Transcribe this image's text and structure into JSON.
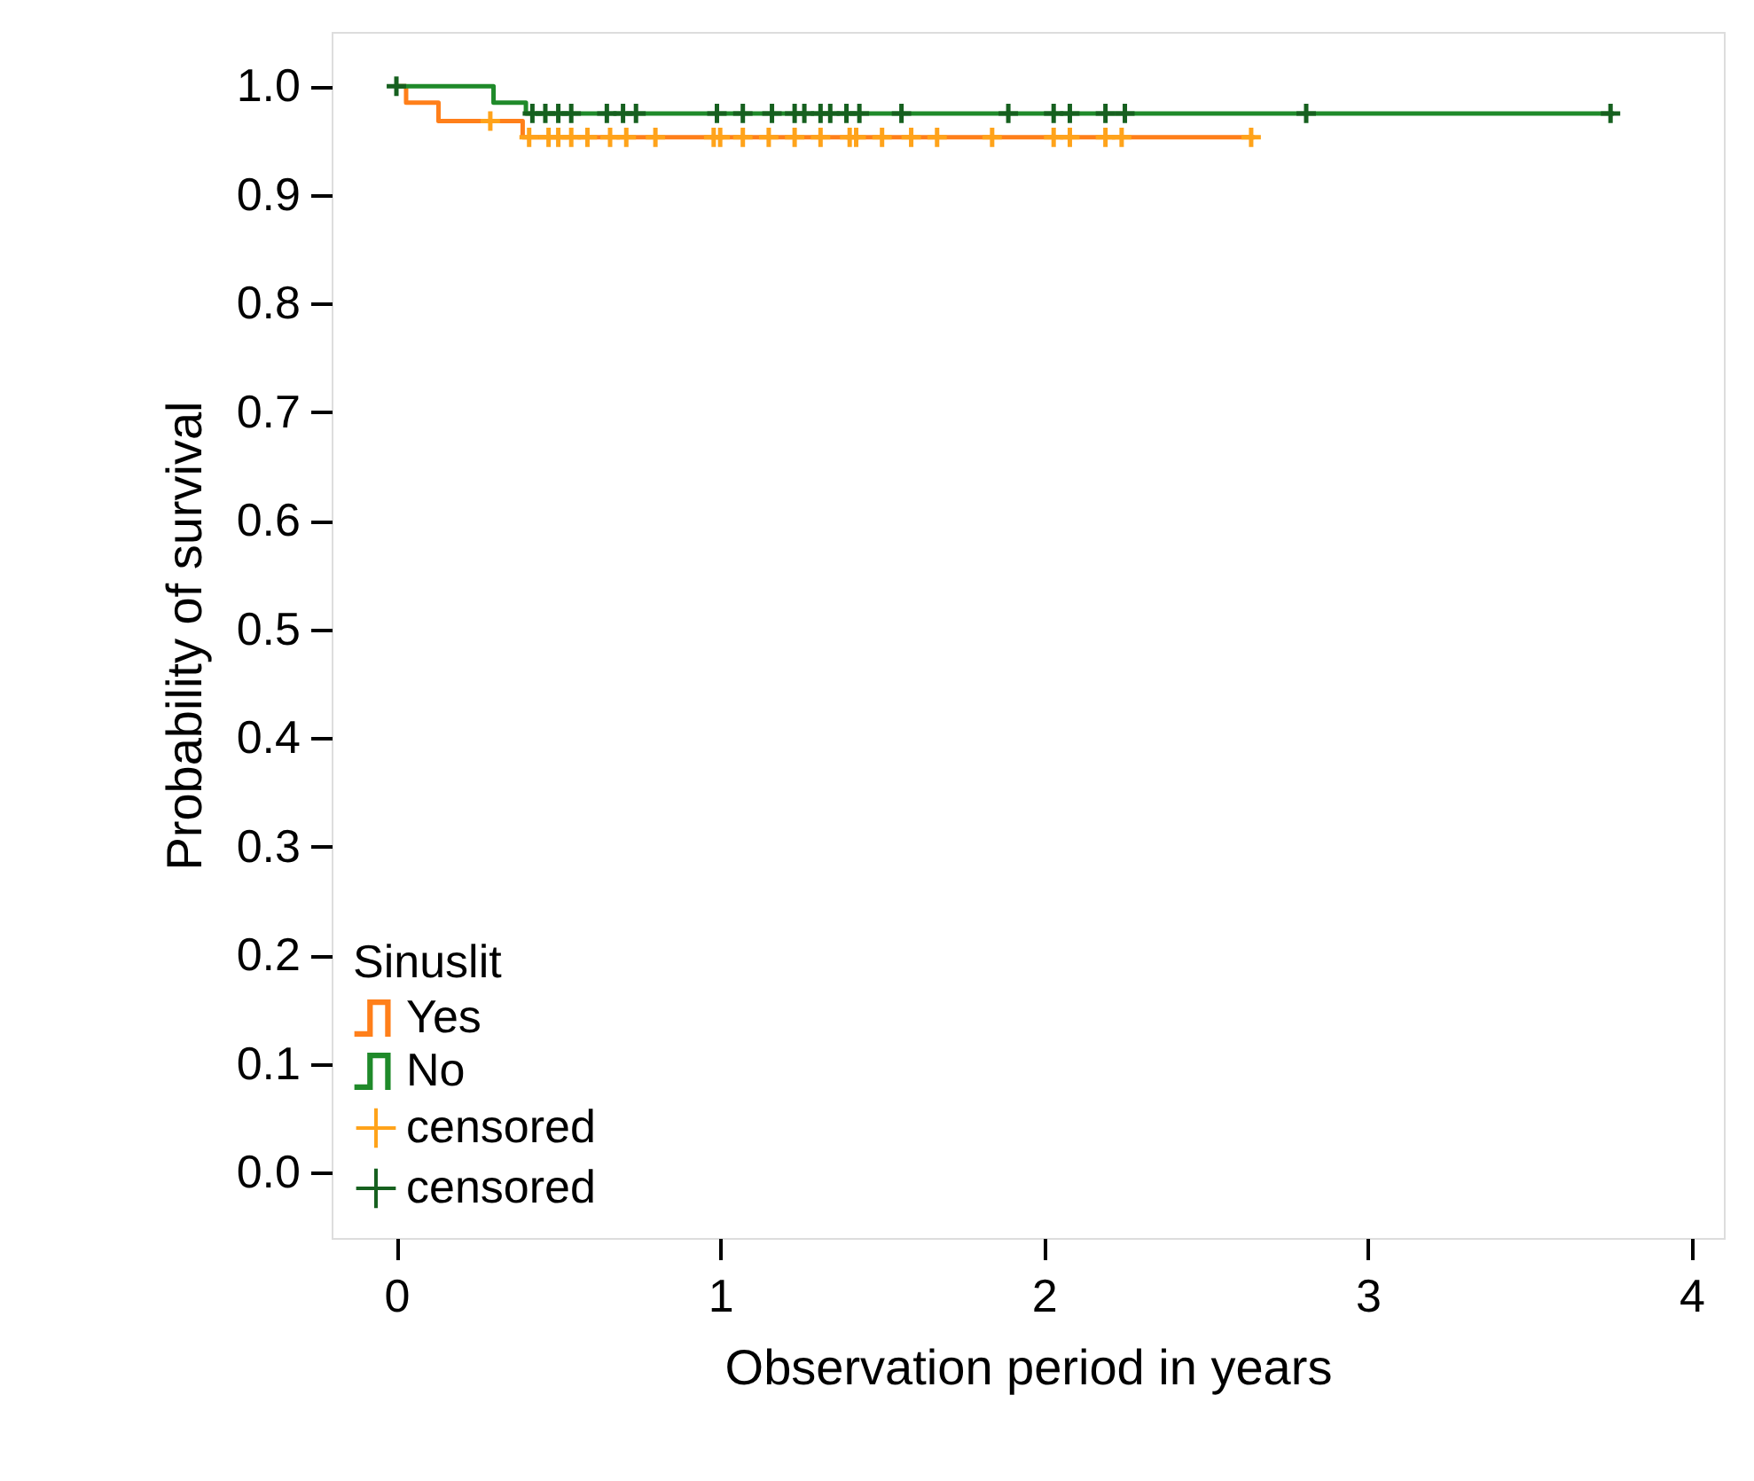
{
  "chart_data": {
    "type": "step",
    "xlabel": "Observation period in years",
    "ylabel": "Probability of survival",
    "legend_title": "Sinuslit",
    "xlim": [
      -0.2,
      4.1
    ],
    "xticks": [
      0,
      1,
      2,
      3,
      4
    ],
    "ylim": [
      -0.06,
      1.05
    ],
    "yticks": [
      {
        "value": 0,
        "label": "0.0"
      },
      0.1,
      0.2,
      0.3,
      0.4,
      0.5,
      0.6,
      0.7,
      0.8,
      0.9,
      {
        "value": 1,
        "label": "1.0"
      }
    ],
    "grid": false,
    "legend": "bottom left",
    "line_style": "solid",
    "series": [
      {
        "name": "Yes",
        "marker": "none",
        "color": "#ff7f1a",
        "x": [
          0,
          0.03,
          0.13,
          0.39,
          2.65
        ],
        "values": [
          1.0,
          0.985,
          0.968,
          0.953,
          0.953
        ]
      },
      {
        "name": "No",
        "marker": "none",
        "color": "#1f8a2a",
        "x": [
          0,
          0.3,
          0.4,
          3.76
        ],
        "values": [
          1.0,
          0.985,
          0.975,
          0.975
        ]
      },
      {
        "name": "censored",
        "type": "scatter",
        "marker": "cross",
        "color": "#ffa31a",
        "x": [
          0.29,
          0.41,
          0.47,
          0.5,
          0.54,
          0.59,
          0.66,
          0.71,
          0.8,
          0.98,
          1.0,
          1.07,
          1.15,
          1.23,
          1.31,
          1.4,
          1.42,
          1.5,
          1.59,
          1.67,
          1.84,
          2.03,
          2.08,
          2.19,
          2.24,
          2.64
        ],
        "values": [
          0.968,
          0.953,
          0.953,
          0.953,
          0.953,
          0.953,
          0.953,
          0.953,
          0.953,
          0.953,
          0.953,
          0.953,
          0.953,
          0.953,
          0.953,
          0.953,
          0.953,
          0.953,
          0.953,
          0.953,
          0.953,
          0.953,
          0.953,
          0.953,
          0.953,
          0.953
        ]
      },
      {
        "name": "censored",
        "type": "scatter",
        "marker": "cross",
        "color": "#16601f",
        "x": [
          0.0,
          0.42,
          0.46,
          0.5,
          0.54,
          0.65,
          0.7,
          0.74,
          0.99,
          1.07,
          1.16,
          1.23,
          1.26,
          1.31,
          1.34,
          1.39,
          1.43,
          1.56,
          1.89,
          2.03,
          2.08,
          2.19,
          2.25,
          2.81,
          3.75
        ],
        "values": [
          1.0,
          0.975,
          0.975,
          0.975,
          0.975,
          0.975,
          0.975,
          0.975,
          0.975,
          0.975,
          0.975,
          0.975,
          0.975,
          0.975,
          0.975,
          0.975,
          0.975,
          0.975,
          0.975,
          0.975,
          0.975,
          0.975,
          0.975,
          0.975,
          0.975
        ]
      }
    ]
  }
}
